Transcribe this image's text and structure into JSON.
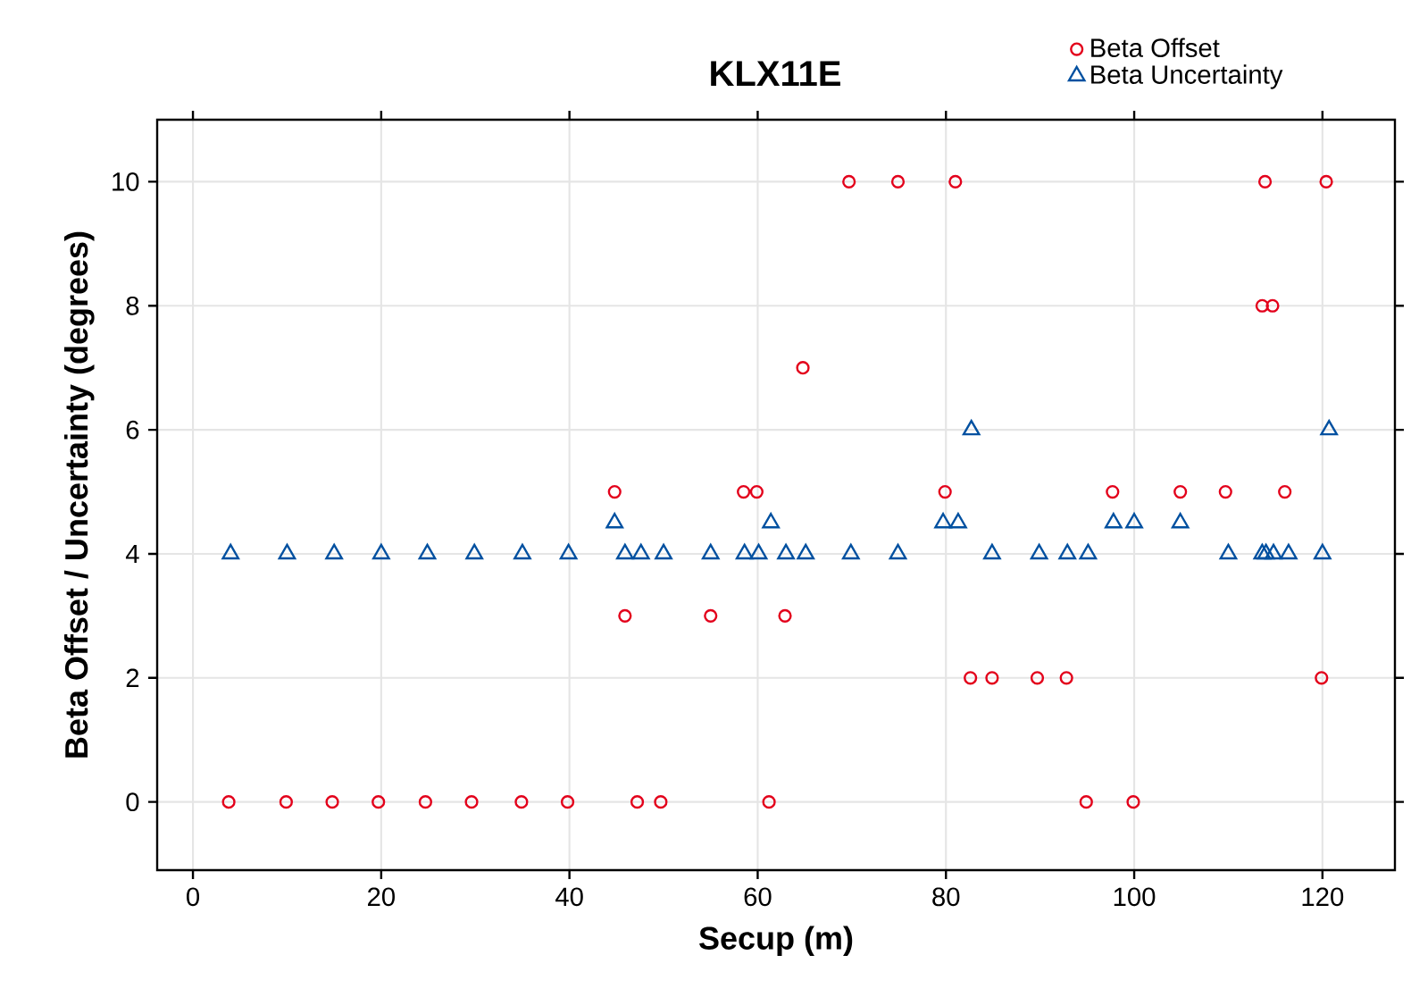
{
  "chart_data": {
    "type": "scatter",
    "title": "KLX11E",
    "xlabel": "Secup (m)",
    "ylabel": "Beta Offset / Uncertainty (degrees)",
    "xlim": [
      -3.8,
      127.7
    ],
    "ylim": [
      -1.1,
      11
    ],
    "xticks": [
      0,
      20,
      40,
      60,
      80,
      100,
      120
    ],
    "yticks": [
      0,
      2,
      4,
      6,
      8,
      10
    ],
    "grid": true,
    "legend": "top right",
    "series": [
      {
        "name": "Beta Offset",
        "color": "#e3001b",
        "marker": "circle",
        "x": [
          3.8,
          9.9,
          14.8,
          19.7,
          24.7,
          29.6,
          34.9,
          39.8,
          44.8,
          45.9,
          47.2,
          49.7,
          55.0,
          58.5,
          59.9,
          61.2,
          62.9,
          64.8,
          69.7,
          74.9,
          79.9,
          81.0,
          82.6,
          84.9,
          89.7,
          92.8,
          94.9,
          97.7,
          99.9,
          104.9,
          109.7,
          113.6,
          113.9,
          114.7,
          116.0,
          119.9,
          120.4
        ],
        "values": [
          0,
          0,
          0,
          0,
          0,
          0,
          0,
          0,
          5,
          3,
          0,
          0,
          3,
          5,
          5,
          0,
          3,
          7,
          10,
          10,
          5,
          10,
          2,
          2,
          2,
          2,
          0,
          5,
          0,
          5,
          5,
          8,
          10,
          8,
          5,
          2,
          10
        ]
      },
      {
        "name": "Beta Uncertainty",
        "color": "#0050a0",
        "marker": "triangle",
        "x": [
          4.0,
          10.0,
          15.0,
          20.0,
          24.9,
          29.9,
          35.0,
          39.9,
          44.8,
          45.9,
          47.6,
          50.0,
          55.0,
          58.6,
          60.1,
          61.4,
          63.0,
          65.1,
          69.9,
          74.9,
          79.7,
          81.3,
          82.7,
          84.9,
          89.9,
          92.9,
          95.1,
          97.8,
          100.0,
          104.9,
          110.0,
          113.6,
          114.0,
          114.8,
          116.4,
          120.0,
          120.7
        ],
        "values": [
          4,
          4,
          4,
          4,
          4,
          4,
          4,
          4,
          4.5,
          4,
          4,
          4,
          4,
          4,
          4,
          4.5,
          4,
          4,
          4,
          4,
          4.5,
          4.5,
          6,
          4,
          4,
          4,
          4,
          4.5,
          4.5,
          4.5,
          4,
          4,
          4,
          4,
          4,
          4,
          6
        ]
      }
    ]
  }
}
